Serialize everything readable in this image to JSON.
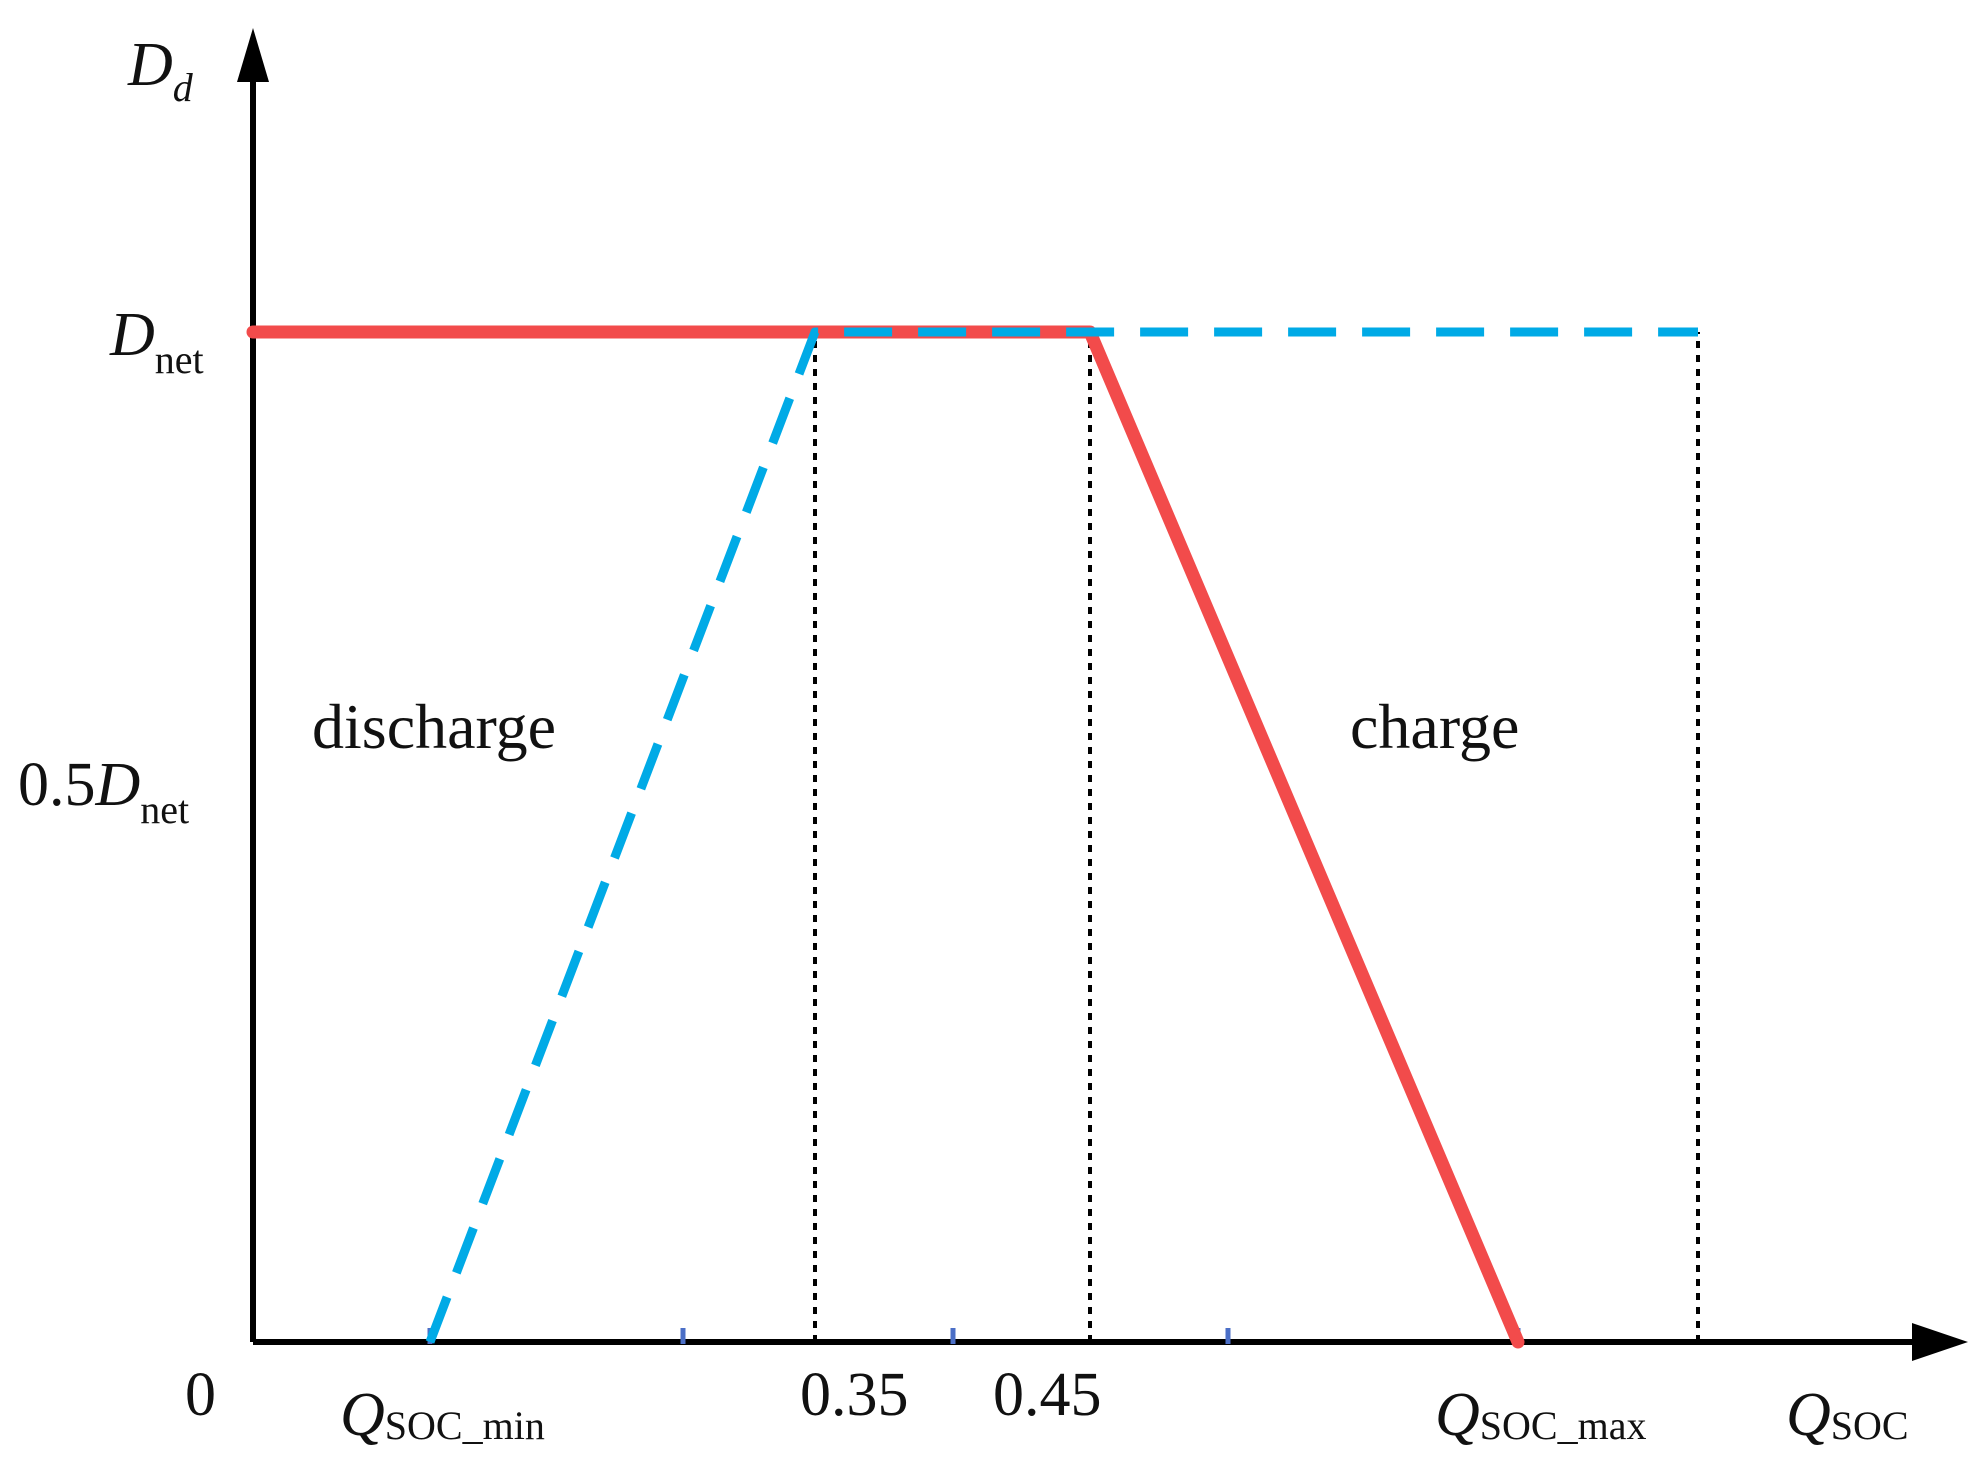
{
  "chart_data": {
    "type": "line",
    "title": "",
    "x_axis": {
      "label_main": "Q",
      "label_sub": "SOC",
      "origin_label": "0",
      "tick_labels": [
        {
          "main": "Q",
          "sub": "SOC_min",
          "italic_main": true
        },
        {
          "main": "0.35",
          "sub": "",
          "italic_main": false
        },
        {
          "main": "0.45",
          "sub": "",
          "italic_main": false
        },
        {
          "main": "Q",
          "sub": "SOC_max",
          "italic_main": true
        }
      ]
    },
    "y_axis": {
      "label_main": "D",
      "label_sub": "d",
      "tick_labels": [
        {
          "prefix": "",
          "main": "D",
          "sub": "net"
        },
        {
          "prefix": "0.5",
          "main": "D",
          "sub": "net"
        }
      ]
    },
    "axis_ranges": {
      "x": [
        0,
        0.7
      ],
      "y": [
        0,
        1.25
      ]
    },
    "grid": false,
    "legend": "none",
    "series": [
      {
        "style": "solid",
        "color": "#f24b4b",
        "points": [
          [
            0,
            1
          ],
          [
            0.45,
            1
          ],
          [
            0.6,
            0
          ]
        ]
      },
      {
        "style": "dashed",
        "color": "#00aae6",
        "points": [
          [
            0.1,
            0
          ],
          [
            0.335,
            1
          ],
          [
            0.55,
            1
          ]
        ]
      }
    ],
    "reference_lines": [
      {
        "x": 0.335,
        "y_from": 0,
        "y_to": 1,
        "style": "dotted"
      },
      {
        "x": 0.45,
        "y_from": 0,
        "y_to": 1,
        "style": "dotted"
      },
      {
        "x": 0.55,
        "y_from": 0,
        "y_to": 1,
        "style": "dotted"
      }
    ],
    "minor_ticks_x": [
      0.1,
      0.233,
      0.375,
      0.5,
      0.6
    ],
    "annotations": [
      {
        "text": "discharge",
        "x": 0.125,
        "y": 0.62
      },
      {
        "text": "charge",
        "x": 0.51,
        "y": 0.62
      }
    ],
    "colors": {
      "axis": "#000000",
      "tick": "#4b6fc7",
      "guide": "#000000"
    }
  }
}
